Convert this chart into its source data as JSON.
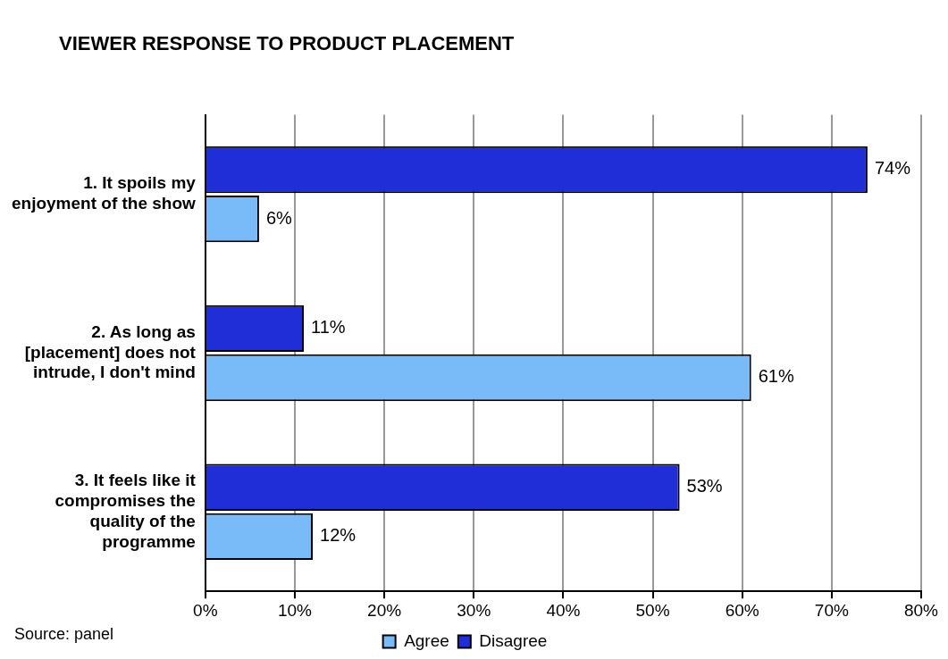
{
  "chart_data": {
    "type": "bar",
    "orientation": "horizontal",
    "title": "VIEWER RESPONSE TO PRODUCT PLACEMENT",
    "categories": [
      "1. It spoils my enjoyment of the show",
      "2. As long as [placement] does not intrude, I don't mind",
      "3. It feels like it compromises the quality of the programme"
    ],
    "series": [
      {
        "name": "Disagree",
        "color": "#1f2ed6",
        "values": [
          74,
          11,
          53
        ],
        "value_labels": [
          "74%",
          "11%",
          "53%"
        ]
      },
      {
        "name": "Agree",
        "color": "#79bbf9",
        "values": [
          6,
          61,
          12
        ],
        "value_labels": [
          "6%",
          "61%",
          "12%"
        ]
      }
    ],
    "xlim": [
      0,
      80
    ],
    "xticks": [
      {
        "value": 0,
        "label": "0%"
      },
      {
        "value": 10,
        "label": "10%"
      },
      {
        "value": 20,
        "label": "20%"
      },
      {
        "value": 30,
        "label": "30%"
      },
      {
        "value": 40,
        "label": "40%"
      },
      {
        "value": 50,
        "label": "50%"
      },
      {
        "value": 60,
        "label": "60%"
      },
      {
        "value": 70,
        "label": "70%"
      },
      {
        "value": 80,
        "label": "80%"
      }
    ],
    "grid": "x",
    "legend": "bottom",
    "annotations": [
      "Source: panel"
    ]
  }
}
